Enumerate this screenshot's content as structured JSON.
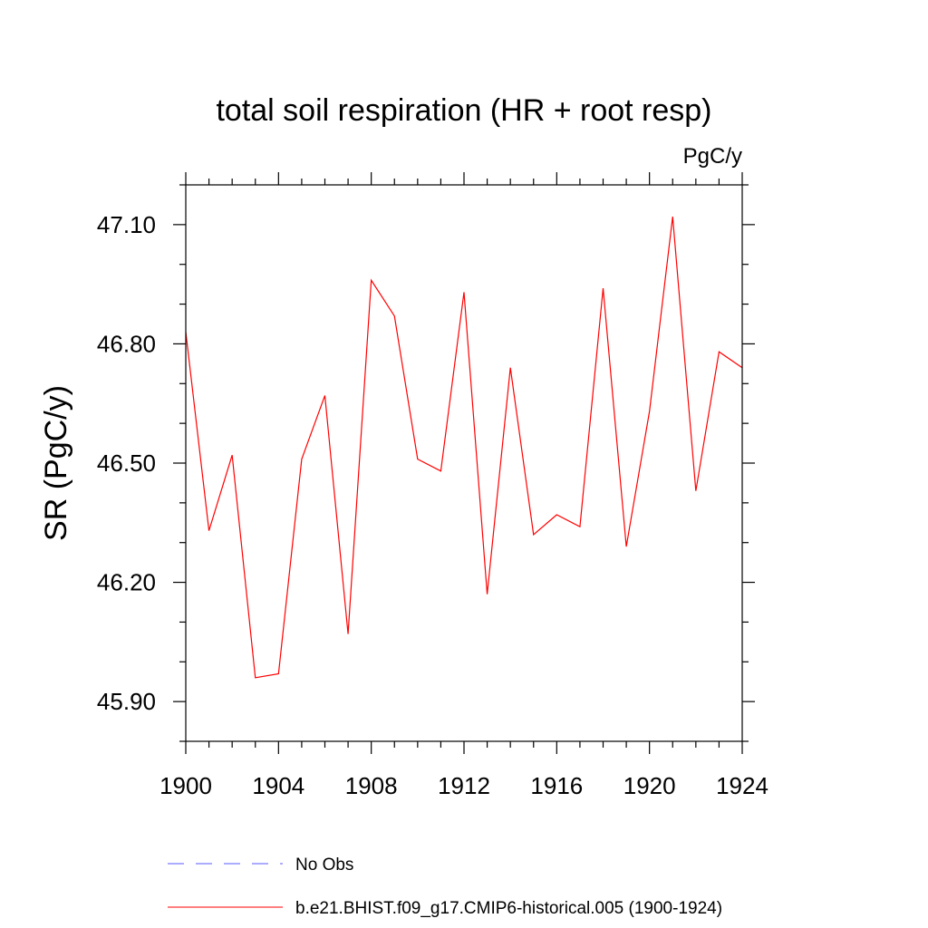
{
  "chart_data": {
    "type": "line",
    "title": "total soil respiration (HR + root resp)",
    "units": "PgC/y",
    "ylabel": "SR  (PgC/y)",
    "xlabel": "",
    "xlim": [
      1900,
      1924
    ],
    "ylim": [
      45.8,
      47.2
    ],
    "x_ticks": [
      "1900",
      "1904",
      "1908",
      "1912",
      "1916",
      "1920",
      "1924"
    ],
    "y_ticks": [
      "45.90",
      "46.20",
      "46.50",
      "46.80",
      "47.10"
    ],
    "x": [
      1900,
      1901,
      1902,
      1903,
      1904,
      1905,
      1906,
      1907,
      1908,
      1909,
      1910,
      1911,
      1912,
      1913,
      1914,
      1915,
      1916,
      1917,
      1918,
      1919,
      1920,
      1921,
      1922,
      1923,
      1924
    ],
    "series": [
      {
        "name": "b.e21.BHIST.f09_g17.CMIP6-historical.005 (1900-1924)",
        "color": "#ff0000",
        "style": "solid",
        "values": [
          46.83,
          46.33,
          46.52,
          45.96,
          45.97,
          46.51,
          46.67,
          46.07,
          46.96,
          46.87,
          46.51,
          46.48,
          46.93,
          46.17,
          46.74,
          46.32,
          46.37,
          46.34,
          46.94,
          46.29,
          46.63,
          47.12,
          46.43,
          46.78,
          46.74
        ]
      }
    ],
    "legend": [
      {
        "label": "No Obs",
        "color": "#5a5aff",
        "style": "dashed"
      },
      {
        "label": "b.e21.BHIST.f09_g17.CMIP6-historical.005 (1900-1924)",
        "color": "#ff0000",
        "style": "solid"
      }
    ],
    "legend_placement": "bottom",
    "grid": false
  }
}
